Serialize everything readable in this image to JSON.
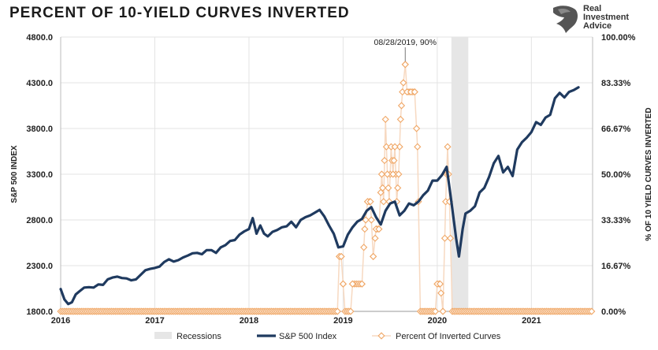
{
  "title": "PERCENT OF 10-YIELD CURVES INVERTED",
  "brand": {
    "lines": [
      "Real",
      "Investment",
      "Advice"
    ],
    "logo_icon": "eagle-head-icon"
  },
  "colors": {
    "sp500": "#1f3a5f",
    "inverted": "#f0a766",
    "inverted_line": "#f7d9c1",
    "recession": "#e6e6e6",
    "grid": "#e3e3e3"
  },
  "chart_data": {
    "type": "line",
    "title": "PERCENT OF 10-YIELD CURVES INVERTED",
    "ylabel_left": "S&P 500 INDEX",
    "ylabel_right": "% OF 10 YIELD CURVES INVERTED",
    "ylim_left": [
      1800,
      4800
    ],
    "ylim_right": [
      0,
      100
    ],
    "xlim": [
      2016.0,
      2021.65
    ],
    "left_ticks": [
      "4800.0",
      "4300.0",
      "3800.0",
      "3300.0",
      "2800.0",
      "2300.0",
      "1800.0"
    ],
    "right_ticks": [
      "100.00%",
      "83.33%",
      "66.67%",
      "50.00%",
      "33.33%",
      "16.67%",
      "0.00%"
    ],
    "x_ticks": [
      "2016",
      "2017",
      "2018",
      "2019",
      "2020",
      "2021"
    ],
    "grid": "horizontal and vertical",
    "legend_position": "bottom",
    "legend": [
      "Recessions",
      "S&P 500 Index",
      "Percent Of Inverted Curves"
    ],
    "annotation": {
      "text": "08/28/2019, 90%",
      "x": 2019.66,
      "y": 90
    },
    "recessions": [
      [
        2020.15,
        2020.33
      ]
    ],
    "series": [
      {
        "name": "S&P 500 Index",
        "axis": "left",
        "points": [
          [
            2016.0,
            2044
          ],
          [
            2016.04,
            1930
          ],
          [
            2016.08,
            1880
          ],
          [
            2016.12,
            1900
          ],
          [
            2016.16,
            1985
          ],
          [
            2016.2,
            2020
          ],
          [
            2016.25,
            2060
          ],
          [
            2016.3,
            2065
          ],
          [
            2016.35,
            2060
          ],
          [
            2016.4,
            2095
          ],
          [
            2016.45,
            2090
          ],
          [
            2016.5,
            2150
          ],
          [
            2016.55,
            2170
          ],
          [
            2016.6,
            2180
          ],
          [
            2016.65,
            2165
          ],
          [
            2016.7,
            2160
          ],
          [
            2016.75,
            2140
          ],
          [
            2016.8,
            2150
          ],
          [
            2016.85,
            2200
          ],
          [
            2016.9,
            2250
          ],
          [
            2016.95,
            2265
          ],
          [
            2017.0,
            2275
          ],
          [
            2017.05,
            2290
          ],
          [
            2017.1,
            2340
          ],
          [
            2017.15,
            2370
          ],
          [
            2017.2,
            2345
          ],
          [
            2017.25,
            2360
          ],
          [
            2017.3,
            2390
          ],
          [
            2017.35,
            2410
          ],
          [
            2017.4,
            2435
          ],
          [
            2017.45,
            2440
          ],
          [
            2017.5,
            2425
          ],
          [
            2017.55,
            2470
          ],
          [
            2017.6,
            2470
          ],
          [
            2017.65,
            2440
          ],
          [
            2017.7,
            2500
          ],
          [
            2017.75,
            2525
          ],
          [
            2017.8,
            2570
          ],
          [
            2017.85,
            2580
          ],
          [
            2017.9,
            2640
          ],
          [
            2017.95,
            2675
          ],
          [
            2018.0,
            2700
          ],
          [
            2018.04,
            2820
          ],
          [
            2018.08,
            2650
          ],
          [
            2018.12,
            2740
          ],
          [
            2018.16,
            2650
          ],
          [
            2018.2,
            2620
          ],
          [
            2018.25,
            2670
          ],
          [
            2018.3,
            2690
          ],
          [
            2018.35,
            2720
          ],
          [
            2018.4,
            2730
          ],
          [
            2018.45,
            2780
          ],
          [
            2018.5,
            2720
          ],
          [
            2018.55,
            2800
          ],
          [
            2018.6,
            2830
          ],
          [
            2018.65,
            2850
          ],
          [
            2018.7,
            2880
          ],
          [
            2018.75,
            2910
          ],
          [
            2018.8,
            2840
          ],
          [
            2018.85,
            2740
          ],
          [
            2018.9,
            2650
          ],
          [
            2018.95,
            2500
          ],
          [
            2019.0,
            2510
          ],
          [
            2019.05,
            2640
          ],
          [
            2019.1,
            2720
          ],
          [
            2019.15,
            2780
          ],
          [
            2019.2,
            2810
          ],
          [
            2019.25,
            2900
          ],
          [
            2019.3,
            2940
          ],
          [
            2019.35,
            2830
          ],
          [
            2019.4,
            2750
          ],
          [
            2019.45,
            2900
          ],
          [
            2019.5,
            2980
          ],
          [
            2019.55,
            3000
          ],
          [
            2019.6,
            2850
          ],
          [
            2019.65,
            2900
          ],
          [
            2019.7,
            2980
          ],
          [
            2019.75,
            2960
          ],
          [
            2019.8,
            3000
          ],
          [
            2019.85,
            3070
          ],
          [
            2019.9,
            3120
          ],
          [
            2019.95,
            3230
          ],
          [
            2020.0,
            3230
          ],
          [
            2020.05,
            3290
          ],
          [
            2020.1,
            3380
          ],
          [
            2020.15,
            3000
          ],
          [
            2020.2,
            2600
          ],
          [
            2020.23,
            2400
          ],
          [
            2020.27,
            2700
          ],
          [
            2020.3,
            2870
          ],
          [
            2020.35,
            2900
          ],
          [
            2020.4,
            2950
          ],
          [
            2020.45,
            3100
          ],
          [
            2020.5,
            3150
          ],
          [
            2020.55,
            3270
          ],
          [
            2020.6,
            3420
          ],
          [
            2020.65,
            3500
          ],
          [
            2020.7,
            3320
          ],
          [
            2020.75,
            3380
          ],
          [
            2020.8,
            3280
          ],
          [
            2020.85,
            3570
          ],
          [
            2020.9,
            3650
          ],
          [
            2020.95,
            3700
          ],
          [
            2021.0,
            3760
          ],
          [
            2021.05,
            3870
          ],
          [
            2021.1,
            3840
          ],
          [
            2021.15,
            3920
          ],
          [
            2021.2,
            3950
          ],
          [
            2021.25,
            4130
          ],
          [
            2021.3,
            4190
          ],
          [
            2021.35,
            4140
          ],
          [
            2021.4,
            4200
          ],
          [
            2021.45,
            4220
          ],
          [
            2021.5,
            4250
          ]
        ]
      },
      {
        "name": "Percent Of Inverted Curves",
        "axis": "right",
        "points": [
          [
            2016.0,
            0
          ],
          [
            2018.94,
            0
          ],
          [
            2018.96,
            20
          ],
          [
            2018.98,
            20
          ],
          [
            2019.0,
            10
          ],
          [
            2019.02,
            0
          ],
          [
            2019.08,
            0
          ],
          [
            2019.1,
            10
          ],
          [
            2019.2,
            10
          ],
          [
            2019.23,
            30
          ],
          [
            2019.26,
            40
          ],
          [
            2019.29,
            40
          ],
          [
            2019.32,
            20
          ],
          [
            2019.35,
            30
          ],
          [
            2019.38,
            30
          ],
          [
            2019.41,
            50
          ],
          [
            2019.43,
            40
          ],
          [
            2019.45,
            70
          ],
          [
            2019.47,
            50
          ],
          [
            2019.49,
            40
          ],
          [
            2019.51,
            60
          ],
          [
            2019.53,
            50
          ],
          [
            2019.55,
            60
          ],
          [
            2019.57,
            40
          ],
          [
            2019.59,
            50
          ],
          [
            2019.61,
            70
          ],
          [
            2019.63,
            80
          ],
          [
            2019.66,
            90
          ],
          [
            2019.68,
            80
          ],
          [
            2019.72,
            80
          ],
          [
            2019.76,
            80
          ],
          [
            2019.79,
            60
          ],
          [
            2019.82,
            0
          ],
          [
            2019.98,
            0
          ],
          [
            2020.0,
            10
          ],
          [
            2020.03,
            10
          ],
          [
            2020.06,
            0
          ],
          [
            2020.09,
            40
          ],
          [
            2020.11,
            60
          ],
          [
            2020.13,
            40
          ],
          [
            2020.16,
            0
          ],
          [
            2021.65,
            0
          ]
        ]
      }
    ]
  }
}
